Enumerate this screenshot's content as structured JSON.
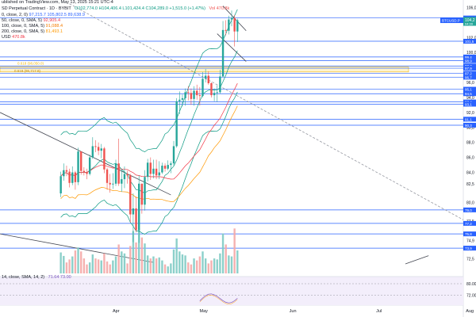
{
  "header": {
    "published_line": "ublished on TradingView.com, May 13, 2025 15:21 UTC-4",
    "symbol_line": "SD Perpetual Contract · 1D · BYBIT",
    "ohlc": "O102,774.0  H104,406.4  L101,424.4  C104,289.0  +1,515.0 (+1.47%)",
    "volume": "Vol 470.8k",
    "indicators": [
      {
        "text": "0, close, 2, 0)",
        "values": "97,215.7  105,802.5  89,638.9",
        "color": "#2962ff"
      },
      {
        "text": "50, close, 0, SMA, 5)",
        "values": "92,905.4",
        "color": "#f23645"
      },
      {
        "text": "100, close, 0, SMA, 5)",
        "values": "91,088.4",
        "color": "#f57c00"
      },
      {
        "text": "200, close, 0, SMA, 5)",
        "values": "81,493.1",
        "color": "#ff9800"
      },
      {
        "text": "USD",
        "values": "470.8k",
        "color": "#f23645"
      }
    ],
    "rsi_label": "14, close, SMA, 14, 2)",
    "rsi_values": "71.64  73.00"
  },
  "price_axis": {
    "ticks": [
      "106,0",
      "104,0",
      "102,0",
      "100,0",
      "98,0",
      "96,0",
      "94,0",
      "92,0",
      "90,0",
      "88,0",
      "86,0",
      "84,0",
      "82,5",
      "80,0",
      "77,5",
      "74,9",
      "72,5"
    ],
    "rsi_ticks": [
      "80.00",
      "72.00"
    ],
    "symbol_tag": "BTCUSD.P",
    "current_price": "104,2",
    "current_sub": "04:39",
    "level_tags": [
      "104,6",
      "101,5",
      "99,4",
      "98,9",
      "98,2",
      "97,9",
      "97,2",
      "96,7",
      "95,1",
      "94,5",
      "93,4",
      "93,1",
      "91,1",
      "90,3",
      "79,0",
      "77,2",
      "75,8",
      "73,9"
    ]
  },
  "time_axis": {
    "labels": [
      "Apr",
      "May",
      "Jun",
      "Jul",
      "Aug"
    ]
  },
  "annotations": {
    "fib_upper": "0.618 (98,050.0)",
    "fib_lower": "0.618 (95,717.8)"
  },
  "colors": {
    "up": "#26a69a",
    "down": "#ef5350",
    "level": "#2962ff",
    "bb": "#089981",
    "sma50": "#f23645",
    "sma200": "#ff9800",
    "zone": "#fff3cd"
  },
  "chart_data": {
    "type": "candlestick",
    "interval": "1D",
    "y_range": [
      70000,
      107000
    ],
    "x": [
      "2025-03-13",
      "2025-03-14",
      "2025-03-15",
      "2025-03-16",
      "2025-03-17",
      "2025-03-18",
      "2025-03-19",
      "2025-03-20",
      "2025-03-21",
      "2025-03-22",
      "2025-03-23",
      "2025-03-24",
      "2025-03-25",
      "2025-03-26",
      "2025-03-27",
      "2025-03-28",
      "2025-03-29",
      "2025-03-30",
      "2025-03-31",
      "2025-04-01",
      "2025-04-02",
      "2025-04-03",
      "2025-04-04",
      "2025-04-05",
      "2025-04-06",
      "2025-04-07",
      "2025-04-08",
      "2025-04-09",
      "2025-04-10",
      "2025-04-11",
      "2025-04-12",
      "2025-04-13",
      "2025-04-14",
      "2025-04-15",
      "2025-04-16",
      "2025-04-17",
      "2025-04-18",
      "2025-04-19",
      "2025-04-20",
      "2025-04-21",
      "2025-04-22",
      "2025-04-23",
      "2025-04-24",
      "2025-04-25",
      "2025-04-26",
      "2025-04-27",
      "2025-04-28",
      "2025-04-29",
      "2025-04-30",
      "2025-05-01",
      "2025-05-02",
      "2025-05-03",
      "2025-05-04",
      "2025-05-05",
      "2025-05-06",
      "2025-05-07",
      "2025-05-08",
      "2025-05-09",
      "2025-05-10",
      "2025-05-11",
      "2025-05-12",
      "2025-05-13"
    ],
    "close": [
      83500,
      84300,
      84100,
      82600,
      84000,
      82700,
      86800,
      84200,
      84000,
      83800,
      86000,
      87500,
      87400,
      86900,
      87200,
      84400,
      82600,
      82400,
      82500,
      85200,
      82500,
      83100,
      83800,
      83600,
      78400,
      79200,
      76300,
      82500,
      79700,
      83400,
      85300,
      83800,
      84500,
      83600,
      84000,
      84900,
      84500,
      85000,
      85200,
      87500,
      93500,
      93700,
      93900,
      94700,
      94600,
      93800,
      94900,
      94300,
      94200,
      96500,
      96900,
      95900,
      94300,
      94600,
      94700,
      96800,
      103000,
      102900,
      104400,
      104600,
      102800,
      104300
    ],
    "open": [
      81200,
      83500,
      84300,
      84100,
      82600,
      84000,
      82700,
      86800,
      84200,
      84000,
      83800,
      86000,
      87500,
      87400,
      86900,
      87200,
      84400,
      82600,
      82400,
      82500,
      85200,
      82500,
      83100,
      83800,
      83600,
      78400,
      79200,
      76300,
      82500,
      79700,
      83400,
      85300,
      83800,
      84500,
      83600,
      84000,
      84900,
      84500,
      85000,
      85200,
      87500,
      93500,
      93700,
      93900,
      94700,
      94600,
      93800,
      94900,
      94300,
      94200,
      96500,
      96900,
      95900,
      94300,
      94600,
      94700,
      96800,
      103000,
      102900,
      104400,
      104600,
      102800
    ],
    "high": [
      84100,
      85200,
      84900,
      84500,
      84800,
      84200,
      87300,
      86800,
      84700,
      84500,
      86400,
      88700,
      88300,
      88000,
      87800,
      87400,
      84600,
      83800,
      83900,
      85700,
      88500,
      84500,
      84800,
      84200,
      83800,
      81200,
      80800,
      83600,
      82500,
      84300,
      85800,
      86000,
      85700,
      85700,
      85500,
      85300,
      85200,
      85600,
      85500,
      88200,
      93900,
      94800,
      94400,
      95200,
      95500,
      95200,
      95500,
      95700,
      95400,
      97400,
      97800,
      97500,
      96000,
      95200,
      95600,
      97700,
      104200,
      104300,
      104900,
      105600,
      105000,
      104500
    ],
    "low": [
      80700,
      82900,
      83500,
      82000,
      82300,
      81700,
      82300,
      83700,
      83600,
      83100,
      83600,
      85800,
      86700,
      86300,
      85900,
      83900,
      81700,
      81300,
      81800,
      82200,
      82200,
      81400,
      81900,
      82500,
      77300,
      74700,
      76000,
      74600,
      78500,
      78900,
      82800,
      83000,
      83200,
      83100,
      83100,
      83800,
      84100,
      84300,
      83900,
      84900,
      87300,
      91800,
      92800,
      92900,
      93600,
      93000,
      92900,
      93700,
      92900,
      94000,
      96000,
      95700,
      94000,
      93500,
      93400,
      94500,
      96700,
      102300,
      102400,
      103500,
      100800,
      101400
    ],
    "volume": [
      42,
      35,
      22,
      28,
      34,
      46,
      52,
      44,
      30,
      18,
      22,
      38,
      30,
      28,
      26,
      40,
      24,
      18,
      26,
      34,
      58,
      44,
      40,
      20,
      55,
      85,
      62,
      90,
      72,
      60,
      36,
      30,
      34,
      30,
      32,
      26,
      18,
      14,
      20,
      48,
      70,
      44,
      38,
      36,
      22,
      18,
      30,
      26,
      34,
      44,
      30,
      20,
      26,
      30,
      28,
      40,
      80,
      58,
      36,
      34,
      90,
      46
    ],
    "horizontal_levels": [
      104600,
      101500,
      99400,
      98900,
      98200,
      97900,
      97200,
      96700,
      95100,
      94500,
      93400,
      93100,
      91100,
      90300,
      79000,
      77200,
      75800,
      73900
    ],
    "fib_zone": [
      97400,
      98050
    ],
    "sma50_last": 92905.4,
    "sma200_last": 81493.1,
    "bb_last": {
      "mid": 97215.7,
      "upper": 105802.5,
      "lower": 89638.9
    },
    "rsi_last": 71.64,
    "rsi_range": [
      65,
      85
    ]
  }
}
